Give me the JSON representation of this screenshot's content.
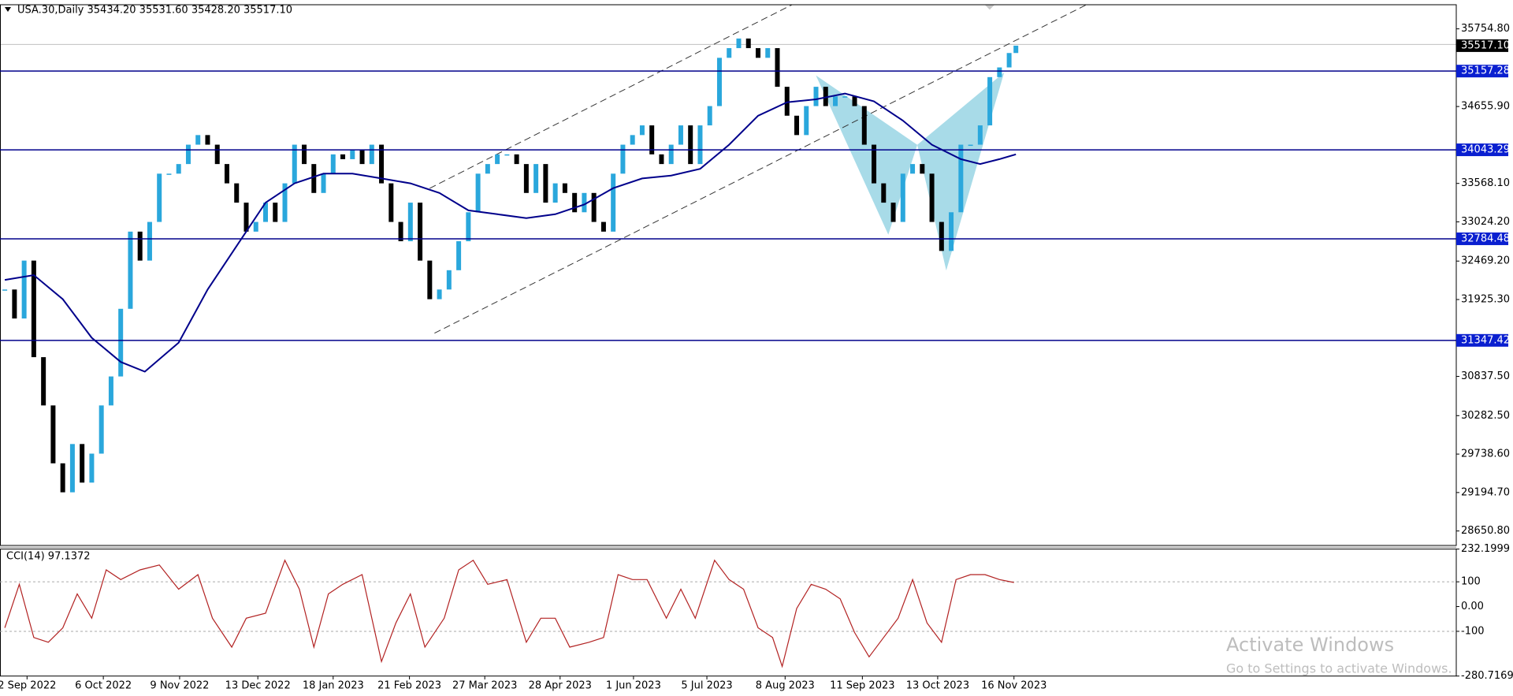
{
  "chart_data": [
    {
      "type": "candlestick",
      "title": "USA.30,Daily 35434.20 35531.60 35428.20 35517.10",
      "x": [
        0,
        1,
        2,
        3,
        4,
        5,
        6,
        7,
        8,
        9,
        10,
        11,
        12,
        13,
        14,
        15,
        16,
        17,
        18,
        19,
        20,
        21,
        22,
        23,
        24,
        25,
        26,
        27,
        28,
        29,
        30,
        31,
        32,
        33,
        34,
        35,
        36,
        37,
        38,
        39,
        40,
        41,
        42,
        43,
        44,
        45,
        46,
        47,
        48,
        49,
        50,
        51,
        52,
        53,
        54,
        55,
        56,
        57,
        58,
        59,
        60,
        61,
        62,
        63,
        64,
        65,
        66,
        67,
        68,
        69,
        70,
        71,
        72,
        73,
        74,
        75,
        76,
        77,
        78,
        79,
        80,
        81,
        82,
        83,
        84,
        85,
        86,
        87,
        88,
        89,
        90,
        91,
        92,
        93,
        94,
        95,
        96,
        97,
        98,
        99,
        100,
        101,
        102,
        103,
        104,
        104.7
      ],
      "values": [
        32067,
        31657,
        32476,
        31110,
        30427,
        29608,
        29198,
        29881,
        29335,
        29745,
        30427,
        30837,
        31794,
        32886,
        32476,
        33023,
        33706,
        33706,
        33842,
        34116,
        34252,
        34116,
        33842,
        33569,
        33296,
        32886,
        33023,
        33296,
        33023,
        33569,
        34116,
        33842,
        33433,
        33706,
        33979,
        33911,
        34047,
        33842,
        34116,
        33569,
        33023,
        32750,
        33296,
        32476,
        31930,
        32067,
        32340,
        32750,
        33160,
        33706,
        33842,
        33979,
        33979,
        33842,
        33433,
        33842,
        33296,
        33569,
        33433,
        33160,
        33433,
        33023,
        32886,
        33706,
        34116,
        34252,
        34389,
        33979,
        33842,
        34116,
        34389,
        33842,
        34389,
        34662,
        35345,
        35482,
        35618,
        35482,
        35345,
        35482,
        34935,
        34526,
        34252,
        34662,
        34935,
        34662,
        34799,
        34799,
        34662,
        34116,
        33569,
        33296,
        33023,
        33706,
        33842,
        33706,
        33023,
        32613,
        33160,
        34116,
        34116,
        34389,
        35072,
        35209,
        35413,
        35517.1
      ],
      "up_color": "#2aa7dc",
      "down_color": "#000000",
      "ma": {
        "color": "#00008b",
        "x": [
          0,
          3,
          6,
          9,
          12,
          14.5,
          18,
          21,
          24,
          27,
          30,
          33,
          36,
          39,
          42,
          45,
          48,
          51,
          54,
          57,
          60,
          63,
          66,
          69,
          72,
          75,
          78,
          81,
          84,
          87,
          90,
          93,
          96,
          99,
          101,
          103,
          104.7
        ],
        "values": [
          32203,
          32271,
          31930,
          31384,
          31042,
          30905,
          31315,
          32067,
          32681,
          33296,
          33569,
          33706,
          33706,
          33638,
          33569,
          33433,
          33187,
          33132,
          33077,
          33132,
          33269,
          33501,
          33638,
          33679,
          33774,
          34116,
          34526,
          34717,
          34758,
          34840,
          34730,
          34457,
          34116,
          33911,
          33842,
          33911,
          33979
        ]
      },
      "levels": [
        35157.28,
        34043.29,
        32784.48,
        31347.42
      ],
      "level_color": "#00008b",
      "level_label_color": "#0a1fd0",
      "last_price": {
        "value": 35517.1,
        "label": "35517.10"
      },
      "xlim": [
        -0.5,
        150.3
      ],
      "xticks": [
        {
          "value": 2.3,
          "label": "2 Sep 2022"
        },
        {
          "value": 10.2,
          "label": "6 Oct 2022"
        },
        {
          "value": 18.1,
          "label": "9 Nov 2022"
        },
        {
          "value": 26.2,
          "label": "13 Dec 2022"
        },
        {
          "value": 34,
          "label": "18 Jan 2023"
        },
        {
          "value": 41.9,
          "label": "21 Feb 2023"
        },
        {
          "value": 49.7,
          "label": "27 Mar 2023"
        },
        {
          "value": 57.5,
          "label": "28 Apr 2023"
        },
        {
          "value": 65.1,
          "label": "1 Jun 2023"
        },
        {
          "value": 72.7,
          "label": "5 Jul 2023"
        },
        {
          "value": 80.8,
          "label": "8 Aug 2023"
        },
        {
          "value": 88.8,
          "label": "11 Sep 2023"
        },
        {
          "value": 96.6,
          "label": "13 Oct 2023"
        },
        {
          "value": 104.5,
          "label": "16 Nov 2023"
        }
      ],
      "ylim": [
        28446,
        36096
      ],
      "yticks": [
        {
          "value": 35754.8,
          "label": "35754.80"
        },
        {
          "value": 34655.9,
          "label": "34655.90"
        },
        {
          "value": 33568.1,
          "label": "33568.10"
        },
        {
          "value": 33024.2,
          "label": "33024.20"
        },
        {
          "value": 32469.2,
          "label": "32469.20"
        },
        {
          "value": 31925.3,
          "label": "31925.30"
        },
        {
          "value": 30837.5,
          "label": "30837.50"
        },
        {
          "value": 30282.5,
          "label": "30282.50"
        },
        {
          "value": 29738.6,
          "label": "29738.60"
        },
        {
          "value": 29194.7,
          "label": "29194.70"
        },
        {
          "value": 28650.8,
          "label": "28650.80"
        }
      ]
    },
    {
      "type": "line",
      "title": "CCI(14) 97.1372",
      "color": "#b22222",
      "x": [
        0,
        1.5,
        3,
        4.5,
        6,
        7.5,
        9,
        10.5,
        12,
        14,
        16,
        18,
        20,
        21.5,
        23.5,
        25,
        27,
        29,
        30.5,
        32,
        33.5,
        35,
        37,
        39,
        40.5,
        42,
        43.5,
        45.5,
        47,
        48.5,
        50,
        52,
        54,
        55.5,
        57,
        58.5,
        60.5,
        62,
        63.5,
        65,
        66.5,
        68.5,
        70,
        71.5,
        73.5,
        75,
        76.5,
        78,
        79.5,
        80.5,
        82,
        83.5,
        85,
        86.5,
        88,
        89.5,
        91,
        92.5,
        94,
        95.5,
        97,
        98.5,
        100,
        101.5,
        103,
        104.5
      ],
      "values": [
        -86,
        90,
        -125,
        -144,
        -86,
        51,
        -47,
        148,
        109,
        148,
        168,
        70,
        129,
        -47,
        -164,
        -47,
        -27,
        187,
        70,
        -164,
        51,
        90,
        129,
        -222,
        -66,
        51,
        -164,
        -47,
        148,
        187,
        90,
        109,
        -144,
        -47,
        -47,
        -164,
        -144,
        -125,
        129,
        109,
        109,
        -47,
        70,
        -47,
        187,
        109,
        70,
        -86,
        -125,
        -242,
        -8,
        90,
        70,
        31,
        -105,
        -203,
        -125,
        -47,
        109,
        -66,
        -144,
        109,
        129,
        129,
        109,
        97.1372
      ],
      "levels": [
        100,
        -100
      ],
      "xlim": [
        -0.5,
        150.3
      ],
      "ylim": [
        -280.7169,
        232.1999
      ],
      "yticks": [
        232.1999,
        100,
        {
          "value": 0,
          "label": "0.00"
        },
        -100,
        -280.7169
      ]
    }
  ],
  "watermark": {
    "title": "Activate Windows",
    "subtitle": "Go to Settings to activate Windows."
  }
}
